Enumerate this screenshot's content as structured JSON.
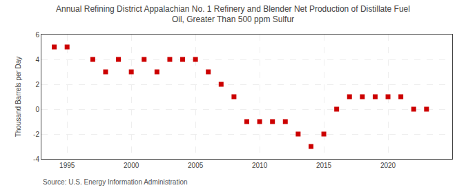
{
  "chart_data": {
    "type": "scatter",
    "title": "Annual Refining District Appalachian No. 1 Refinery and Blender Net Production of Distillate Fuel\nOil, Greater Than 500 ppm Sulfur",
    "ylabel": "Thousand Barrels per Day",
    "annotations": [
      {
        "text": "Source: U.S. Energy Information Administration"
      }
    ],
    "x": [
      1994,
      1995,
      1997,
      1998,
      1999,
      2000,
      2001,
      2002,
      2003,
      2004,
      2005,
      2006,
      2007,
      2008,
      2009,
      2010,
      2011,
      2012,
      2013,
      2014,
      2015,
      2016,
      2017,
      2018,
      2019,
      2020,
      2021,
      2022,
      2023
    ],
    "values": [
      5,
      5,
      4,
      3,
      4,
      3,
      4,
      3,
      4,
      4,
      4,
      3,
      2,
      1,
      -1,
      -1,
      -1,
      -1,
      -2,
      -3,
      -2,
      0,
      1,
      1,
      1,
      1,
      1,
      0,
      0
    ],
    "color": "#cc0000",
    "marker": "square",
    "xlim": [
      1993,
      2025
    ],
    "xticks": [
      1995,
      2000,
      2005,
      2010,
      2015,
      2020
    ],
    "ylim": [
      -4,
      6
    ],
    "yticks": [
      -4,
      -2,
      0,
      2,
      4,
      6
    ],
    "grid": true
  }
}
